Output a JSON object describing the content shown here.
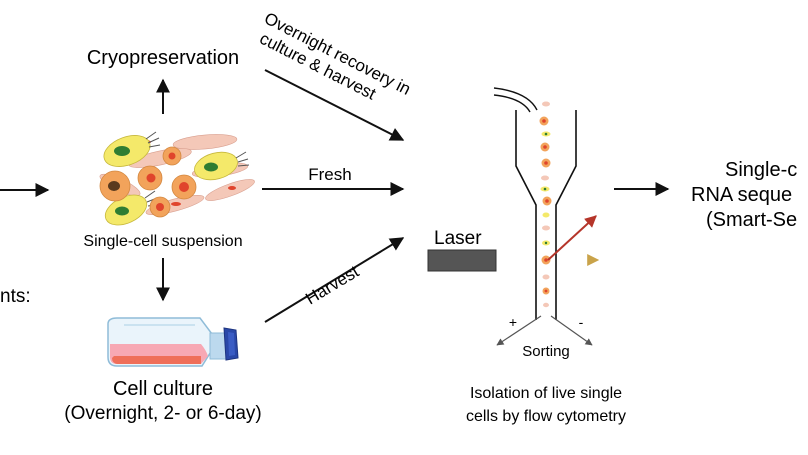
{
  "left_fragment": "nts:",
  "cryopreservation": "Cryopreservation",
  "single_cell_suspension": "Single-cell suspension",
  "cell_culture": {
    "title": "Cell culture",
    "subtitle": "(Overnight, 2- or 6-day)"
  },
  "routes": {
    "overnight_line1": "Overnight recovery in",
    "overnight_line2": "culture & harvest",
    "fresh": "Fresh",
    "harvest": "Harvest"
  },
  "flow_cytometry": {
    "laser": "Laser",
    "plus": "+",
    "minus": "-",
    "sorting": "Sorting",
    "caption_line1": "Isolation of live single",
    "caption_line2": "cells by flow cytometry"
  },
  "output": {
    "line1": "Single-c",
    "line2": "RNA seque",
    "line3": "(Smart-Se"
  },
  "colors": {
    "arrow": "#111111",
    "cell_orange": "#f2a35b",
    "cell_pink": "#f4c8b8",
    "cell_yellow": "#f4e96a",
    "nucleus_red": "#e0442c",
    "nucleus_green": "#2f7d32",
    "flask_liquid": "#f7a8b4",
    "flask_cap": "#2a48a8",
    "laser_beam": "#c9a34a",
    "scatter": "#b5352a"
  }
}
